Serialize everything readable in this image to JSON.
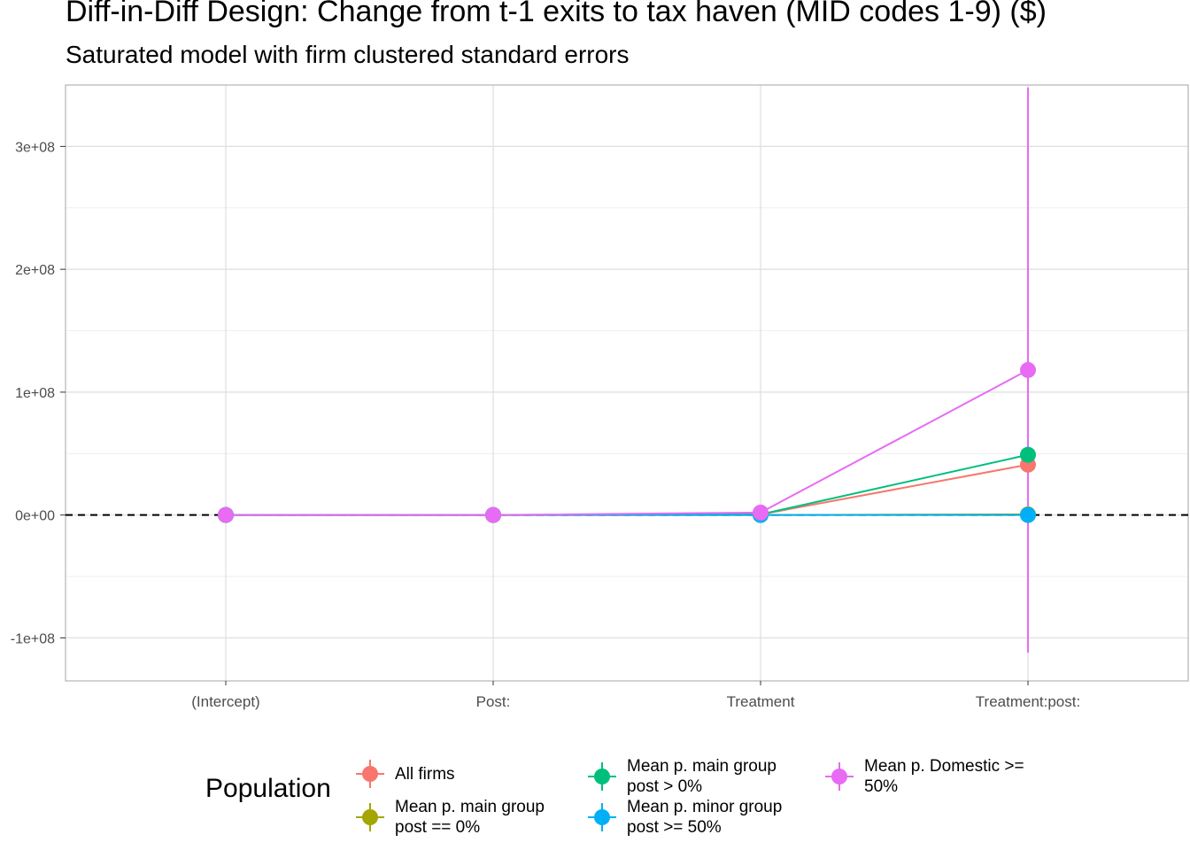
{
  "chart_data": {
    "type": "scatter",
    "title": "Diff-in-Diff Design: Change from t-1 exits to tax haven (MID codes 1-9)  ($)",
    "subtitle": "Saturated model with firm clustered standard errors",
    "categories": [
      "(Intercept)",
      "Post:",
      "Treatment",
      "Treatment:post:"
    ],
    "y_ticks": [
      "-1e+08",
      "0e+00",
      "1e+08",
      "2e+08",
      "3e+08"
    ],
    "y_tick_values": [
      -100000000,
      0,
      100000000,
      200000000,
      300000000
    ],
    "ylim": [
      -135000000,
      350000000
    ],
    "reference_line": 0,
    "grid": true,
    "legend_title": "Population",
    "legend_position": "bottom",
    "series": [
      {
        "name": "All firms",
        "color": "#F8766D",
        "values": [
          0,
          0,
          500000,
          41000000
        ],
        "ci_low": [
          0,
          0,
          0,
          41000000
        ],
        "ci_high": [
          0,
          0,
          1000000,
          41000000
        ]
      },
      {
        "name": "Mean p. main group post == 0%",
        "color": "#A3A500",
        "values": [
          0,
          0,
          0,
          500000
        ],
        "ci_low": [
          0,
          0,
          0,
          0
        ],
        "ci_high": [
          0,
          0,
          0,
          1000000
        ]
      },
      {
        "name": "Mean p. main group post > 0%",
        "color": "#00BF7D",
        "values": [
          0,
          0,
          500000,
          49000000
        ],
        "ci_low": [
          0,
          0,
          0,
          49000000
        ],
        "ci_high": [
          0,
          0,
          1000000,
          49000000
        ]
      },
      {
        "name": "Mean p. minor group post >= 50%",
        "color": "#00B0F6",
        "values": [
          0,
          0,
          0,
          0
        ],
        "ci_low": [
          0,
          0,
          0,
          0
        ],
        "ci_high": [
          0,
          0,
          0,
          0
        ]
      },
      {
        "name": "Mean p. Domestic >= 50%",
        "color": "#E76BF3",
        "values": [
          0,
          0,
          2000000,
          118000000
        ],
        "ci_low": [
          0,
          0,
          0,
          -112000000
        ],
        "ci_high": [
          0,
          0,
          4000000,
          348000000
        ]
      }
    ]
  }
}
